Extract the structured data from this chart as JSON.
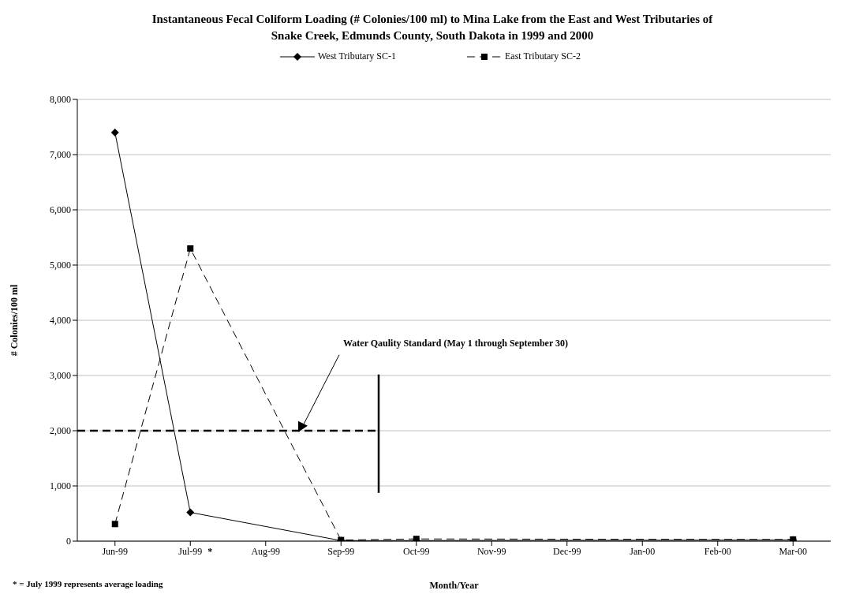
{
  "chart_data": {
    "type": "line",
    "title": "Instantaneous Fecal Coliform Loading (# Colonies/100 ml) to Mina Lake from the East and West Tributaries of Snake Creek, Edmunds County, South Dakota in 1999 and 2000",
    "xlabel": "Month/Year",
    "ylabel": "# Colonies/100 ml",
    "categories": [
      "Jun-99",
      "Jul-99",
      "Aug-99",
      "Sep-99",
      "Oct-99",
      "Nov-99",
      "Dec-99",
      "Jan-00",
      "Feb-00",
      "Mar-00"
    ],
    "series": [
      {
        "name": "West Tributary SC-1",
        "color": "#000000",
        "marker": "diamond",
        "line_style": "solid",
        "values": [
          7400,
          520,
          null,
          10,
          10,
          null,
          null,
          null,
          null,
          20
        ]
      },
      {
        "name": "East Tributary SC-2",
        "color": "#000000",
        "marker": "square",
        "line_style": "dashed",
        "values": [
          310,
          5300,
          null,
          20,
          40,
          null,
          null,
          null,
          null,
          30
        ]
      }
    ],
    "ylim": [
      0,
      8000
    ],
    "yticks": [
      {
        "value": 0,
        "label": "0"
      },
      {
        "value": 1000,
        "label": "1,000"
      },
      {
        "value": 2000,
        "label": "2,000"
      },
      {
        "value": 3000,
        "label": "3,000"
      },
      {
        "value": 4000,
        "label": "4,000"
      },
      {
        "value": 5000,
        "label": "5,000"
      },
      {
        "value": 6000,
        "label": "6,000"
      },
      {
        "value": 7000,
        "label": "7,000"
      },
      {
        "value": 8000,
        "label": "8,000"
      }
    ],
    "grid": "y",
    "legend": "top",
    "ref_lines": [
      {
        "axis": "y",
        "value": 2000,
        "label": "Water Qaulity Standard (May 1 through September 30)",
        "color": "#000000",
        "line_style": "dashed"
      }
    ],
    "annotations": [
      "*",
      "* = July 1999 represents average loading"
    ]
  }
}
